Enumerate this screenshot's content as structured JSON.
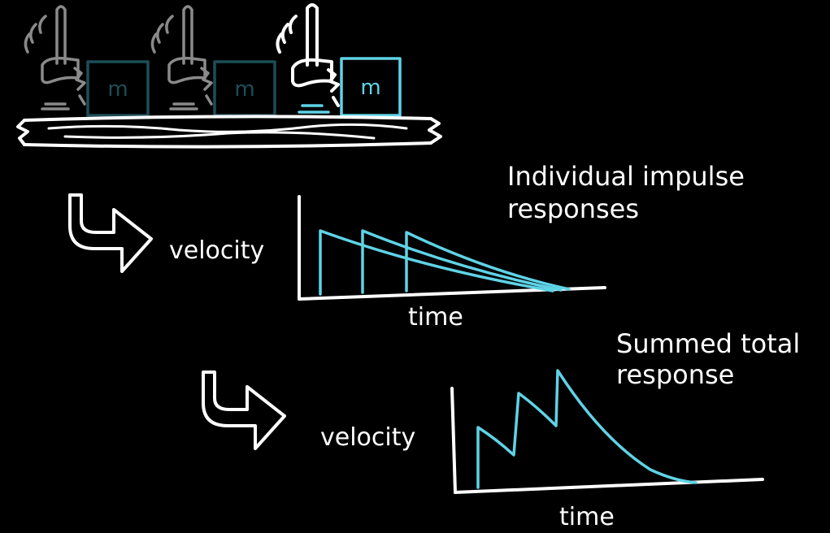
{
  "mass_label": "m",
  "impulse_chart": {
    "title_line1": "Individual impulse",
    "title_line2": "responses",
    "ylabel": "velocity",
    "xlabel": "time"
  },
  "summed_chart": {
    "title_line1": "Summed total",
    "title_line2": "response",
    "ylabel": "velocity",
    "xlabel": "time"
  },
  "colors": {
    "background": "#000000",
    "ink": "#ffffff",
    "response": "#5fd3e6",
    "faded_hammer": "#8a8a8a",
    "faded_mass": "#1d4e58"
  }
}
